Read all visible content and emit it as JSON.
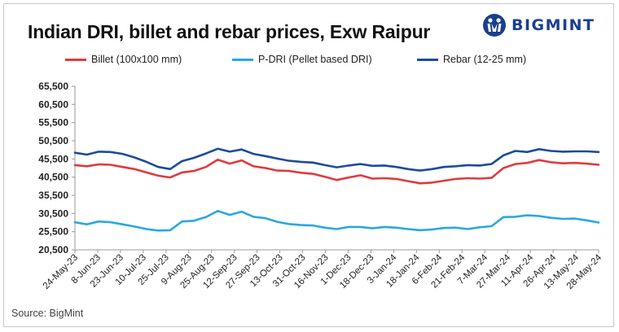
{
  "header": {
    "title": "Indian DRI, billet and rebar prices, Exw Raipur",
    "logo_text": "BIGMINT"
  },
  "footer": {
    "source": "Source: BigMint"
  },
  "chart_data": {
    "type": "line",
    "title": "Indian DRI, billet and rebar prices, Exw Raipur",
    "xlabel": "",
    "ylabel": "",
    "ylim": [
      20500,
      65500
    ],
    "y_ticks": [
      "65,500",
      "60,500",
      "55,500",
      "50,500",
      "45,500",
      "40,500",
      "35,500",
      "30,500",
      "25,500",
      "20,500"
    ],
    "y_tick_values": [
      65500,
      60500,
      55500,
      50500,
      45500,
      40500,
      35500,
      30500,
      25500,
      20500
    ],
    "x_ticks": [
      "24-May-23",
      "8-Jun-23",
      "23-Jun-23",
      "10-Jul-23",
      "25-Jul-23",
      "9-Aug-23",
      "25-Aug-23",
      "12-Sep-23",
      "27-Sep-23",
      "13-Oct-23",
      "31-Oct-23",
      "16-Nov-23",
      "1-Dec-23",
      "18-Dec-23",
      "3-Jan-24",
      "18-Jan-24",
      "6-Feb-24",
      "21-Feb-24",
      "7-Mar-24",
      "27-Mar-24",
      "11-Apr-24",
      "26-Apr-24",
      "13-May-24",
      "28-May-24"
    ],
    "grid": false,
    "legend_position": "top",
    "series": [
      {
        "name": "Billet (100x100 mm)",
        "color": "#e03a3e",
        "values": [
          43800,
          43500,
          44000,
          43900,
          43300,
          42700,
          41800,
          40900,
          40400,
          41800,
          42200,
          43300,
          45300,
          44200,
          45100,
          43500,
          43000,
          42300,
          42200,
          41700,
          41400,
          40600,
          39700,
          40400,
          41000,
          40100,
          40200,
          40000,
          39400,
          38800,
          39000,
          39500,
          40000,
          40200,
          40100,
          40300,
          43000,
          44100,
          44400,
          45200,
          44600,
          44300,
          44400,
          44200,
          43900
        ]
      },
      {
        "name": "P-DRI (Pellet based DRI)",
        "color": "#29a8df",
        "values": [
          28100,
          27500,
          28300,
          28100,
          27500,
          26900,
          26200,
          25800,
          25900,
          28300,
          28500,
          29500,
          31200,
          30100,
          31000,
          29600,
          29200,
          28200,
          27600,
          27300,
          27200,
          26600,
          26200,
          26800,
          26800,
          26400,
          26800,
          26600,
          26200,
          25900,
          26100,
          26500,
          26600,
          26200,
          26700,
          27000,
          29500,
          29600,
          30000,
          29800,
          29300,
          29000,
          29100,
          28600,
          28000
        ]
      },
      {
        "name": "Rebar (12-25 mm)",
        "color": "#1d4c9a",
        "values": [
          47200,
          46700,
          47500,
          47400,
          46900,
          45900,
          44700,
          43300,
          42700,
          44900,
          45800,
          47000,
          48300,
          47500,
          48100,
          46900,
          46300,
          45600,
          45000,
          44700,
          44500,
          43800,
          43200,
          43700,
          44100,
          43600,
          43700,
          43300,
          42700,
          42300,
          42700,
          43300,
          43500,
          43800,
          43700,
          44100,
          46500,
          47700,
          47400,
          48200,
          47700,
          47500,
          47600,
          47600,
          47400
        ]
      }
    ]
  }
}
